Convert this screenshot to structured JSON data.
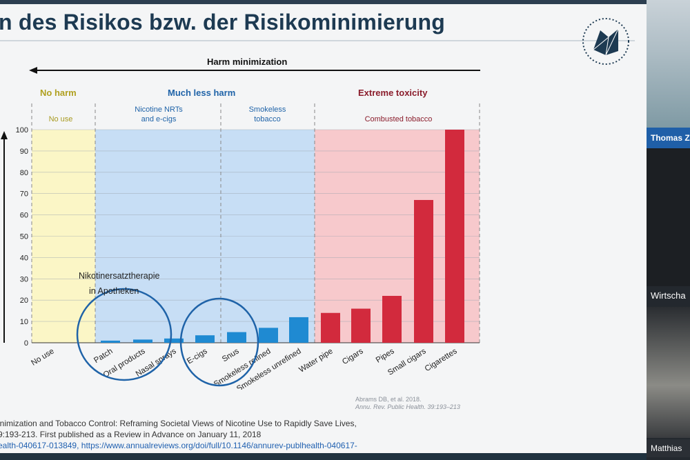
{
  "slide": {
    "title": "n des Risikos bzw. der Risikominimierung",
    "harm_arrow_label": "Harm minimization",
    "categories": [
      {
        "label": "No harm",
        "color": "#b0a020"
      },
      {
        "label": "Much less harm",
        "color": "#1f63a8"
      },
      {
        "label": "Extreme toxicity",
        "color": "#8a1c2b"
      }
    ],
    "subcategories": [
      "No use",
      "Nicotine NRTs\nand e-cigs",
      "Smokeless\ntobacco",
      "Combusted tobacco"
    ],
    "annotation_line1": "Nikotinersatztherapie",
    "annotation_line2": "in Apotheken",
    "citation_small_line1": "Abrams DB, et al. 2018.",
    "citation_small_line2": "Annu. Rev. Public Health. 39:193–213",
    "ref_line1": "inimization and Tobacco Control: Reframing Societal Views of Nicotine Use to Rapidly Save Lives,",
    "ref_line2": "9:193-213. First published as a Review in Advance on January 11, 2018",
    "ref_line3": "ealth-040617-013849, https://www.annualreviews.org/doi/full/10.1146/annurev-publhealth-040617-"
  },
  "participants": {
    "top_name": "Thomas Z",
    "middle_label": "Wirtscha",
    "bottom_name": "Matthias"
  },
  "colors": {
    "blue_bar": "#1f8ad2",
    "red_bar": "#d22a3d",
    "yellow_band": "#fbf6c6",
    "blue_band": "#c7def5",
    "red_band": "#f7c9cc"
  },
  "chart_data": {
    "type": "bar",
    "categories": [
      "No use",
      "Patch",
      "Oral products",
      "Nasal sprays",
      "E-cigs",
      "Snus",
      "Smokeless refined",
      "Smokeless unrefined",
      "Water pipe",
      "Cigars",
      "Pipes",
      "Small cigars",
      "Cigarettes"
    ],
    "values": [
      0,
      1,
      1.5,
      2,
      3.5,
      5,
      7,
      12,
      14,
      16,
      22,
      67,
      100
    ],
    "ylim": [
      0,
      100
    ],
    "yticks": [
      0,
      10,
      20,
      30,
      40,
      50,
      60,
      70,
      80,
      90,
      100
    ],
    "grid": true
  }
}
